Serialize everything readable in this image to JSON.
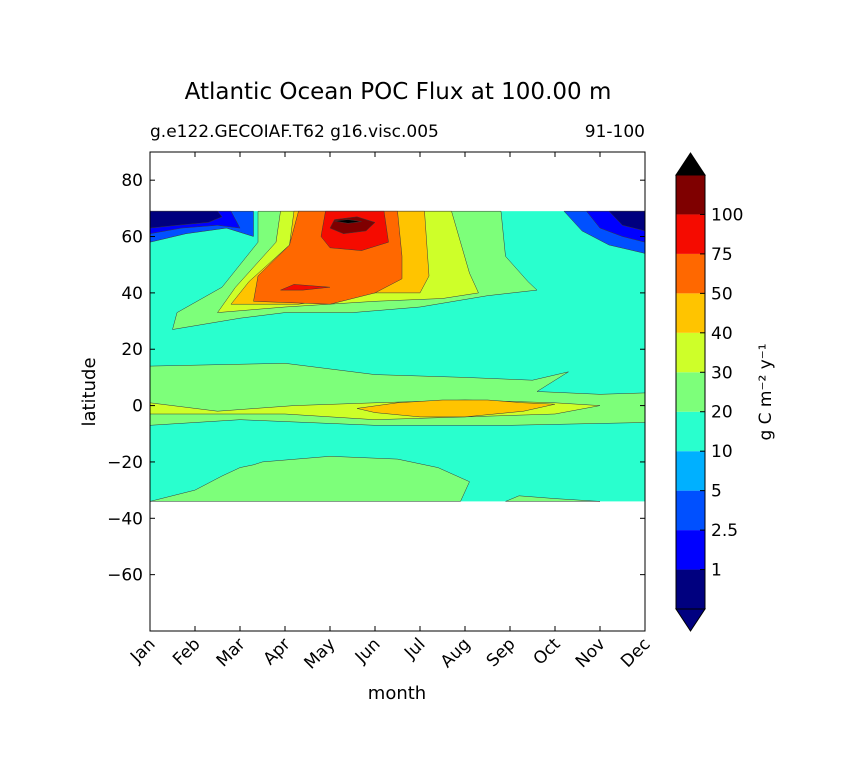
{
  "chart_data": {
    "type": "contourf",
    "title": "Atlantic Ocean POC Flux at 100.00 m",
    "subtitle_left": "g.e122.GECOIAF.T62 g16.visc.005",
    "subtitle_right": "91-100",
    "xlabel": "month",
    "ylabel": "latitude",
    "x_ticks": [
      "Jan",
      "Feb",
      "Mar",
      "Apr",
      "May",
      "Jun",
      "Jul",
      "Aug",
      "Sep",
      "Oct",
      "Nov",
      "Dec"
    ],
    "y_ticks": [
      80,
      60,
      40,
      20,
      0,
      -20,
      -40,
      -60
    ],
    "y_tick_labels": [
      "80",
      "60",
      "40",
      "20",
      "0",
      "−20",
      "−40",
      "−60"
    ],
    "ylim": [
      -80,
      90
    ],
    "xlim": [
      0,
      11
    ],
    "data_lat_range": [
      -34,
      69
    ],
    "colorbar": {
      "label": "g C m⁻² y⁻¹",
      "levels": [
        1,
        2.5,
        5,
        10,
        20,
        30,
        40,
        50,
        75,
        100
      ],
      "level_labels": [
        "1",
        "2.5",
        "5",
        "10",
        "20",
        "30",
        "40",
        "50",
        "75",
        "100"
      ],
      "colors": [
        "#00007f",
        "#0000ff",
        "#0050ff",
        "#00b0ff",
        "#29ffce",
        "#7dff7a",
        "#ceff29",
        "#ffc400",
        "#ff6800",
        "#f50b00",
        "#7f0000"
      ],
      "under_color": "#000080",
      "over_color": "#000000"
    },
    "bands": [
      {
        "v": 5,
        "c": "#0050ff",
        "pts": [
          [
            0,
            58
          ],
          [
            0.8,
            61
          ],
          [
            1.7,
            63
          ],
          [
            2.3,
            60
          ],
          [
            2.3,
            69
          ],
          [
            0,
            69
          ]
        ]
      },
      {
        "v": 2.5,
        "c": "#0000ff",
        "pts": [
          [
            0,
            61
          ],
          [
            0.7,
            63
          ],
          [
            1.5,
            64
          ],
          [
            2,
            63
          ],
          [
            1.8,
            69
          ],
          [
            0,
            69
          ]
        ]
      },
      {
        "v": 1,
        "c": "#00007f",
        "pts": [
          [
            0,
            63
          ],
          [
            0.6,
            64
          ],
          [
            1.3,
            65
          ],
          [
            1.6,
            67
          ],
          [
            1.5,
            69
          ],
          [
            0,
            69
          ]
        ]
      },
      {
        "v": 5,
        "c": "#0050ff",
        "pts": [
          [
            9.2,
            69
          ],
          [
            9.6,
            62
          ],
          [
            10.2,
            57
          ],
          [
            11,
            54
          ],
          [
            11,
            69
          ]
        ]
      },
      {
        "v": 2.5,
        "c": "#0000ff",
        "pts": [
          [
            9.7,
            69
          ],
          [
            10,
            63
          ],
          [
            10.5,
            60
          ],
          [
            11,
            58
          ],
          [
            11,
            69
          ]
        ]
      },
      {
        "v": 1,
        "c": "#00007f",
        "pts": [
          [
            10.2,
            69
          ],
          [
            10.5,
            64
          ],
          [
            11,
            62
          ],
          [
            11,
            69
          ]
        ]
      },
      {
        "v": 20,
        "c": "#7dff7a",
        "pts": [
          [
            0.5,
            27
          ],
          [
            2,
            31
          ],
          [
            3,
            33
          ],
          [
            4.5,
            33
          ],
          [
            6,
            35
          ],
          [
            7.5,
            39
          ],
          [
            8.6,
            41
          ],
          [
            8.4,
            44
          ],
          [
            7.9,
            53
          ],
          [
            7.8,
            69
          ],
          [
            2.4,
            69
          ],
          [
            2.4,
            58
          ],
          [
            1.6,
            42
          ],
          [
            0.6,
            33
          ]
        ]
      },
      {
        "v": 30,
        "c": "#ceff29",
        "pts": [
          [
            1.5,
            33
          ],
          [
            3,
            35
          ],
          [
            5,
            37
          ],
          [
            6.5,
            38
          ],
          [
            7.3,
            40
          ],
          [
            7.1,
            47
          ],
          [
            6.7,
            69
          ],
          [
            2.9,
            69
          ],
          [
            2.8,
            58
          ],
          [
            1.9,
            42
          ]
        ]
      },
      {
        "v": 40,
        "c": "#ffc400",
        "pts": [
          [
            1.8,
            36
          ],
          [
            3.3,
            36
          ],
          [
            5,
            40
          ],
          [
            6,
            40
          ],
          [
            6.2,
            46
          ],
          [
            6.1,
            69
          ],
          [
            3.2,
            69
          ],
          [
            3.1,
            57
          ],
          [
            2.2,
            44
          ]
        ]
      },
      {
        "v": 50,
        "c": "#ff6800",
        "pts": [
          [
            2.3,
            37
          ],
          [
            4,
            36
          ],
          [
            5,
            40
          ],
          [
            5.6,
            45
          ],
          [
            5.6,
            53
          ],
          [
            5.5,
            69
          ],
          [
            3.3,
            69
          ],
          [
            3.1,
            57
          ],
          [
            2.4,
            46
          ]
        ]
      },
      {
        "v": 75,
        "c": "#f50b00",
        "pts": [
          [
            3.8,
            60
          ],
          [
            4,
            56
          ],
          [
            4.7,
            55
          ],
          [
            5.3,
            58
          ],
          [
            5.2,
            69
          ],
          [
            3.9,
            69
          ]
        ]
      },
      {
        "v": 75,
        "c": "#f50b00",
        "pts": [
          [
            2.9,
            41
          ],
          [
            3.2,
            43
          ],
          [
            4,
            42
          ],
          [
            3.4,
            41
          ]
        ]
      },
      {
        "v": 100,
        "c": "#7f0000",
        "pts": [
          [
            4,
            63
          ],
          [
            4.3,
            61
          ],
          [
            4.8,
            62
          ],
          [
            5,
            65
          ],
          [
            4.6,
            67
          ],
          [
            4.1,
            66
          ]
        ]
      },
      {
        "v": 100,
        "c": "#000000",
        "pts": [
          [
            4.1,
            65.5
          ],
          [
            4.4,
            64.7
          ],
          [
            4.7,
            65.3
          ],
          [
            4.4,
            66
          ]
        ]
      },
      {
        "v": 20,
        "c": "#7dff7a",
        "pts": [
          [
            0,
            14
          ],
          [
            3,
            15
          ],
          [
            5,
            11
          ],
          [
            7,
            10
          ],
          [
            8.5,
            9
          ],
          [
            9.3,
            12
          ],
          [
            8.6,
            5
          ],
          [
            10,
            4
          ],
          [
            11,
            4.5
          ],
          [
            11,
            -6
          ],
          [
            8,
            -7
          ],
          [
            5,
            -7
          ],
          [
            2,
            -5
          ],
          [
            0,
            -7
          ]
        ]
      },
      {
        "v": 20,
        "c": "#7dff7a",
        "pts": [
          [
            0,
            -34
          ],
          [
            1,
            -30
          ],
          [
            1.6,
            -25
          ],
          [
            2,
            -22
          ],
          [
            2.3,
            -21
          ],
          [
            2.5,
            -20
          ],
          [
            4,
            -18
          ],
          [
            5.5,
            -19
          ],
          [
            6.4,
            -22
          ],
          [
            7.1,
            -27
          ],
          [
            6.9,
            -34
          ]
        ]
      },
      {
        "v": 20,
        "c": "#7dff7a",
        "pts": [
          [
            7.9,
            -34
          ],
          [
            8.2,
            -32
          ],
          [
            9,
            -33
          ],
          [
            10,
            -34
          ]
        ]
      },
      {
        "v": 30,
        "c": "#ceff29",
        "pts": [
          [
            0,
            1
          ],
          [
            0.5,
            0
          ],
          [
            1.5,
            -2
          ],
          [
            3.2,
            0
          ],
          [
            5,
            1
          ],
          [
            7,
            2
          ],
          [
            9,
            1
          ],
          [
            10,
            0
          ],
          [
            9,
            -3
          ],
          [
            7,
            -4
          ],
          [
            5,
            -5
          ],
          [
            3,
            -3
          ],
          [
            1.5,
            -3
          ],
          [
            0,
            -3
          ]
        ]
      },
      {
        "v": 40,
        "c": "#ffc400",
        "pts": [
          [
            4.6,
            -1
          ],
          [
            5.5,
            1
          ],
          [
            6.5,
            2
          ],
          [
            7.5,
            2
          ],
          [
            8.3,
            1
          ],
          [
            9,
            0.5
          ],
          [
            8.3,
            -2
          ],
          [
            7,
            -4
          ],
          [
            6,
            -4
          ],
          [
            5,
            -2.5
          ]
        ]
      }
    ]
  }
}
